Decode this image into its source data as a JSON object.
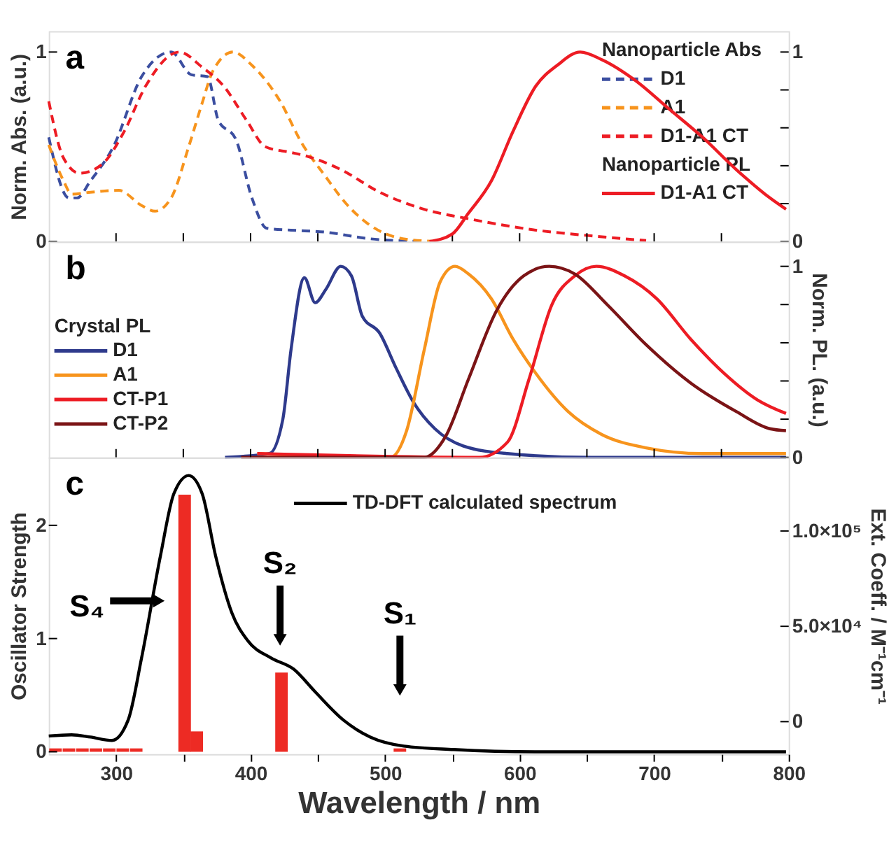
{
  "chart_data": [
    {
      "type": "line",
      "ylabel": "Norm. Abs. (a.u.)",
      "legend_title": "Nanoparticle Abs",
      "legend": "top right",
      "line_style": "solid",
      "xlim": [
        250,
        800
      ],
      "ylim": [
        0,
        1.11
      ],
      "y2lim": [
        0,
        1.11
      ],
      "tick_labels": "y",
      "xticks": [
        {
          "value": 300,
          "label": null
        },
        {
          "value": 350,
          "label": null
        },
        {
          "value": 400,
          "label": null
        },
        {
          "value": 450,
          "label": null
        },
        {
          "value": 500,
          "label": null
        },
        {
          "value": 550,
          "label": null
        },
        {
          "value": 600,
          "label": null
        },
        {
          "value": 650,
          "label": null
        },
        {
          "value": 700,
          "label": null
        },
        {
          "value": 750,
          "label": null
        }
      ],
      "yticks": [
        0,
        1
      ],
      "y2ticks": [
        0,
        {
          "value": 0.2,
          "label": null
        },
        {
          "value": 0.4,
          "label": null
        },
        {
          "value": 0.6,
          "label": null
        },
        {
          "value": 0.8,
          "label": null
        },
        1
      ],
      "annotations": [
        "a",
        "Nanoparticle PL"
      ],
      "series": [
        {
          "name": "D1",
          "color": "#3b4ea0",
          "line_style": "dashed",
          "x": [
            250,
            265,
            271,
            281,
            298,
            319,
            341,
            356,
            368,
            376,
            389,
            401,
            412,
            430,
            455,
            488,
            529
          ],
          "values": [
            0.55,
            0.23,
            0.23,
            0.32,
            0.5,
            0.87,
            1.0,
            0.88,
            0.87,
            0.64,
            0.54,
            0.23,
            0.07,
            0.06,
            0.05,
            0.015,
            0
          ]
        },
        {
          "name": "A1",
          "color": "#f7941d",
          "line_style": "dashed",
          "x": [
            250,
            261,
            267,
            281,
            302,
            319,
            329,
            341,
            354,
            364,
            372,
            387,
            401,
            422,
            438,
            455,
            471,
            488,
            513,
            538
          ],
          "values": [
            0.51,
            0.32,
            0.25,
            0.26,
            0.27,
            0.19,
            0.16,
            0.23,
            0.5,
            0.73,
            0.9,
            1.0,
            0.93,
            0.74,
            0.52,
            0.35,
            0.2,
            0.09,
            0.015,
            0
          ]
        },
        {
          "name": "D1-A1 CT",
          "color": "#ed1c24",
          "line_style": "dashed",
          "x": [
            250,
            261,
            273,
            290,
            306,
            322,
            347,
            364,
            380,
            397,
            411,
            430,
            442,
            467,
            496,
            529,
            562,
            612,
            653,
            694
          ],
          "values": [
            0.74,
            0.44,
            0.36,
            0.41,
            0.58,
            0.82,
            1.0,
            0.92,
            0.82,
            0.64,
            0.5,
            0.47,
            0.45,
            0.38,
            0.26,
            0.17,
            0.12,
            0.06,
            0.03,
            0.005
          ]
        },
        {
          "name": "D1-A1 CT",
          "color": "#ed1c24",
          "line_style": "solid",
          "axis": "y2",
          "x": [
            533,
            550,
            562,
            579,
            595,
            612,
            628,
            645,
            661,
            686,
            711,
            736,
            761,
            786,
            798
          ],
          "values": [
            0,
            0.04,
            0.15,
            0.32,
            0.58,
            0.82,
            0.93,
            1.0,
            0.96,
            0.85,
            0.7,
            0.55,
            0.38,
            0.23,
            0.17
          ]
        }
      ]
    },
    {
      "type": "line",
      "ylabel": "Norm. PL. (a.u.)",
      "legend_title": "Crystal PL",
      "legend": "left",
      "line_style": "solid",
      "xlim": [
        250,
        800
      ],
      "ylim": [
        0,
        1.13
      ],
      "tick_labels": "y",
      "xticks": [
        {
          "value": 300,
          "label": null
        },
        {
          "value": 350,
          "label": null
        },
        {
          "value": 400,
          "label": null
        },
        {
          "value": 450,
          "label": null
        },
        {
          "value": 500,
          "label": null
        },
        {
          "value": 550,
          "label": null
        },
        {
          "value": 600,
          "label": null
        },
        {
          "value": 650,
          "label": null
        },
        {
          "value": 700,
          "label": null
        },
        {
          "value": 750,
          "label": null
        }
      ],
      "yticks": [
        0,
        {
          "value": 0.2,
          "label": null
        },
        {
          "value": 0.4,
          "label": null
        },
        {
          "value": 0.6,
          "label": null
        },
        {
          "value": 0.8,
          "label": null
        },
        1
      ],
      "annotations": [
        "b"
      ],
      "series": [
        {
          "name": "D1",
          "color": "#2e3a8c",
          "x": [
            381,
            414,
            424,
            430,
            440,
            448,
            456,
            467,
            475,
            483,
            496,
            508,
            521,
            537,
            558,
            591,
            653,
            798
          ],
          "values": [
            0,
            0.02,
            0.2,
            0.56,
            0.94,
            0.81,
            0.88,
            1.0,
            0.95,
            0.74,
            0.65,
            0.47,
            0.29,
            0.15,
            0.06,
            0.02,
            0,
            0
          ]
        },
        {
          "name": "A1",
          "color": "#f7941d",
          "x": [
            405,
            504,
            516,
            529,
            541,
            552,
            562,
            579,
            595,
            612,
            636,
            661,
            694,
            736,
            798
          ],
          "values": [
            0.02,
            0,
            0.14,
            0.56,
            0.92,
            1.0,
            0.96,
            0.83,
            0.62,
            0.44,
            0.24,
            0.12,
            0.05,
            0.02,
            0.02
          ]
        },
        {
          "name": "CT-P1",
          "color": "#ed1c24",
          "x": [
            405,
            570,
            591,
            607,
            624,
            641,
            657,
            678,
            702,
            727,
            752,
            777,
            798
          ],
          "values": [
            0.02,
            0,
            0.08,
            0.41,
            0.8,
            0.95,
            1.0,
            0.95,
            0.83,
            0.62,
            0.44,
            0.3,
            0.23
          ]
        },
        {
          "name": "CT-P2",
          "color": "#7b1416",
          "x": [
            393,
            529,
            545,
            562,
            583,
            603,
            622,
            641,
            665,
            694,
            727,
            761,
            786,
            798
          ],
          "values": [
            0,
            0,
            0.11,
            0.41,
            0.77,
            0.95,
            1.0,
            0.96,
            0.8,
            0.59,
            0.39,
            0.24,
            0.15,
            0.14
          ]
        }
      ]
    },
    {
      "type": "line",
      "xlabel": "Wavelength / nm",
      "ylabel": "Oscillator Strength",
      "y2label": "Ext. Coeff. / M⁻¹cm⁻¹",
      "legend": "top",
      "line_style": "solid",
      "xlim": [
        250,
        800
      ],
      "ylim": [
        -0.02,
        2.6
      ],
      "y2lim": [
        -17000,
        138600
      ],
      "xticks": [
        300,
        {
          "value": 350,
          "label": null
        },
        400,
        {
          "value": 450,
          "label": null
        },
        500,
        {
          "value": 550,
          "label": null
        },
        600,
        {
          "value": 650,
          "label": null
        },
        700,
        {
          "value": 750,
          "label": null
        },
        800
      ],
      "yticks": [
        0,
        1,
        2
      ],
      "y2ticks": [
        0,
        {
          "value": 50000,
          "label": "5.0×10⁴"
        },
        {
          "value": 100000,
          "label": "1.0×10⁵"
        }
      ],
      "annotations": [
        "c",
        "S₄",
        "S₂",
        "S₁"
      ],
      "series": [
        {
          "name": "TD-DFT calculated spectrum",
          "color": "#000000",
          "x": [
            250,
            267,
            281,
            297,
            309,
            319,
            333,
            343,
            354,
            364,
            374,
            386,
            398,
            415,
            432,
            448,
            469,
            489,
            514,
            551,
            613,
            798
          ],
          "values": [
            0.14,
            0.15,
            0.13,
            0.1,
            0.28,
            0.83,
            1.73,
            2.28,
            2.44,
            2.28,
            1.73,
            1.23,
            0.98,
            0.83,
            0.73,
            0.53,
            0.28,
            0.13,
            0.05,
            0.02,
            0,
            0
          ]
        },
        {
          "type": "bar",
          "color": "#ed2b24",
          "x": [
            255,
            265,
            275,
            285,
            295,
            305,
            315,
            351,
            360,
            423,
            511
          ],
          "values": [
            0.03,
            0.03,
            0.03,
            0.03,
            0.03,
            0.03,
            0.03,
            2.27,
            0.18,
            0.7,
            0.03
          ]
        }
      ]
    }
  ]
}
